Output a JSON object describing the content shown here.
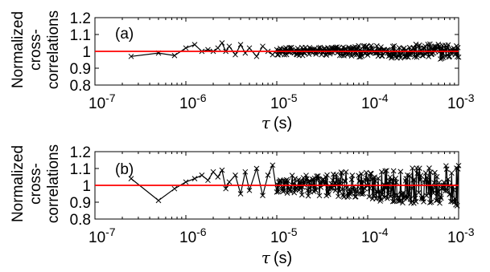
{
  "chart_data": [
    {
      "type": "scatter",
      "panel_label": "(a)",
      "ylabel_lines": [
        "Normalized",
        "cross-",
        "correlations"
      ],
      "xlabel_symbol": "τ",
      "xlabel_unit": "(s)",
      "xscale": "log",
      "xlim": [
        1e-07,
        0.001
      ],
      "ylim": [
        0.8,
        1.2
      ],
      "yticks": [
        0.8,
        0.9,
        1.0,
        1.1,
        1.2
      ],
      "ytick_labels": [
        "0.8",
        "0.9",
        "1",
        "1.1",
        "1.2"
      ],
      "xtick_labels": [
        {
          "base": "10",
          "exp": "-7"
        },
        {
          "base": "10",
          "exp": "-6"
        },
        {
          "base": "10",
          "exp": "-5"
        },
        {
          "base": "10",
          "exp": "-4"
        },
        {
          "base": "10",
          "exp": "-3"
        }
      ],
      "reference_line": 1.0,
      "reference_color": "#ff0000",
      "marker": "x",
      "series_color": "#000000",
      "spread": 0.035,
      "x": [
        2.5e-07,
        5e-07,
        7.5e-07,
        1e-06,
        1.25e-06,
        1.5e-06,
        1.75e-06,
        2e-06,
        2.25e-06,
        2.5e-06,
        2.75e-06,
        3e-06,
        3.5e-06,
        4e-06,
        4.5e-06,
        5e-06,
        6e-06,
        7e-06,
        8e-06,
        9e-06,
        1e-05
      ],
      "y": [
        0.97,
        0.99,
        0.975,
        1.02,
        1.04,
        1.0,
        1.01,
        1.0,
        1.02,
        1.05,
        1.0,
        1.03,
        0.98,
        1.04,
        0.99,
        1.02,
        0.97,
        1.03,
        1.0,
        0.98,
        1.01
      ]
    },
    {
      "type": "scatter",
      "panel_label": "(b)",
      "ylabel_lines": [
        "Normalized",
        "cross-",
        "correlations"
      ],
      "xlabel_symbol": "τ",
      "xlabel_unit": "(s)",
      "xscale": "log",
      "xlim": [
        1e-07,
        0.001
      ],
      "ylim": [
        0.8,
        1.2
      ],
      "yticks": [
        0.8,
        0.9,
        1.0,
        1.1,
        1.2
      ],
      "ytick_labels": [
        "0.8",
        "0.9",
        "1",
        "1.1",
        "1.2"
      ],
      "xtick_labels": [
        {
          "base": "10",
          "exp": "-7"
        },
        {
          "base": "10",
          "exp": "-6"
        },
        {
          "base": "10",
          "exp": "-5"
        },
        {
          "base": "10",
          "exp": "-4"
        },
        {
          "base": "10",
          "exp": "-3"
        }
      ],
      "reference_line": 1.0,
      "reference_color": "#ff0000",
      "marker": "x",
      "series_color": "#000000",
      "spread": 0.09,
      "x": [
        2.5e-07,
        5e-07,
        7.5e-07,
        1e-06,
        1.25e-06,
        1.5e-06,
        1.75e-06,
        2e-06,
        2.25e-06,
        2.5e-06,
        2.75e-06,
        3e-06,
        3.5e-06,
        4e-06,
        4.5e-06,
        5e-06,
        6e-06,
        7e-06,
        8e-06,
        9e-06,
        1e-05
      ],
      "y": [
        1.04,
        0.91,
        0.98,
        1.02,
        1.04,
        1.06,
        1.03,
        1.08,
        1.05,
        1.09,
        0.98,
        1.02,
        1.06,
        0.95,
        1.08,
        0.97,
        1.1,
        0.94,
        1.06,
        1.12,
        0.96
      ]
    }
  ]
}
